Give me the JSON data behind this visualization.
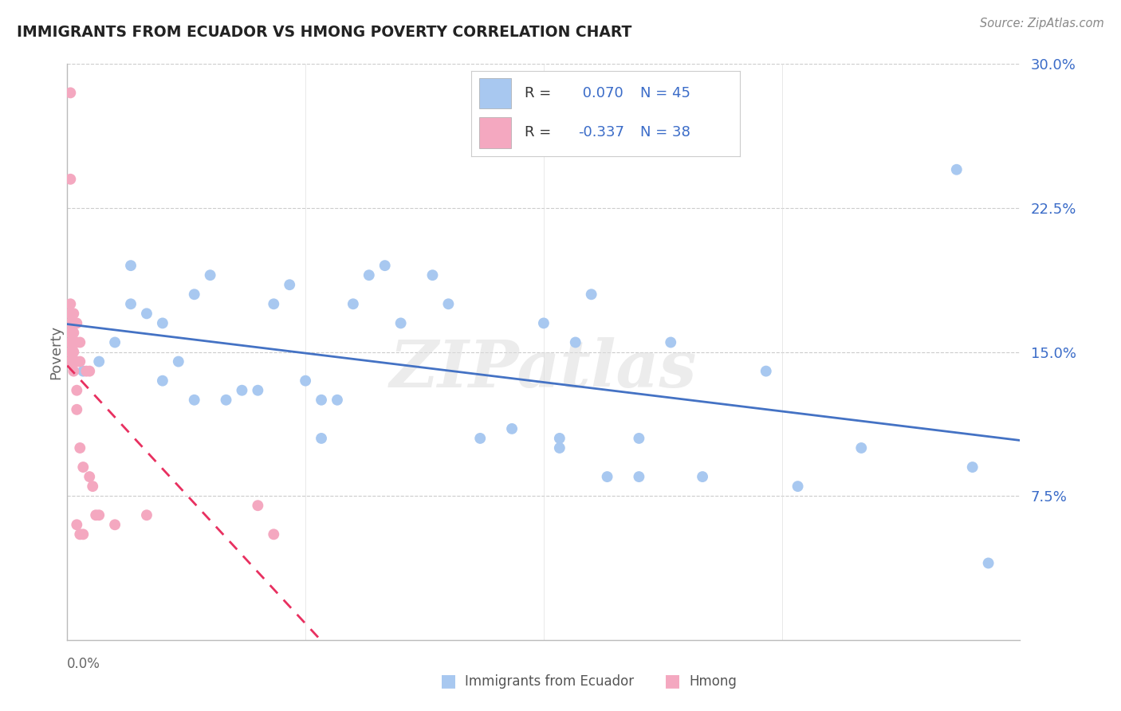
{
  "title": "IMMIGRANTS FROM ECUADOR VS HMONG POVERTY CORRELATION CHART",
  "source": "Source: ZipAtlas.com",
  "ylabel": "Poverty",
  "watermark": "ZIPatlas",
  "ecuador_R": 0.07,
  "ecuador_N": 45,
  "hmong_R": -0.337,
  "hmong_N": 38,
  "ecuador_color": "#A8C8F0",
  "ecuador_line_color": "#4472C4",
  "hmong_color": "#F4A8C0",
  "hmong_line_color": "#E83060",
  "background_color": "#FFFFFF",
  "grid_color": "#CCCCCC",
  "title_color": "#222222",
  "legend_color": "#3B6CC8",
  "xlim": [
    0.0,
    0.3
  ],
  "ylim": [
    0.0,
    0.3
  ],
  "yticks": [
    0.075,
    0.15,
    0.225,
    0.3
  ],
  "ytick_labels": [
    "7.5%",
    "15.0%",
    "22.5%",
    "30.0%"
  ],
  "ecuador_x": [
    0.005,
    0.01,
    0.015,
    0.02,
    0.02,
    0.025,
    0.03,
    0.03,
    0.035,
    0.04,
    0.04,
    0.045,
    0.05,
    0.055,
    0.06,
    0.065,
    0.07,
    0.075,
    0.08,
    0.08,
    0.085,
    0.09,
    0.095,
    0.1,
    0.105,
    0.115,
    0.12,
    0.13,
    0.14,
    0.15,
    0.155,
    0.155,
    0.16,
    0.165,
    0.17,
    0.18,
    0.18,
    0.19,
    0.2,
    0.22,
    0.23,
    0.25,
    0.28,
    0.285,
    0.29
  ],
  "ecuador_y": [
    0.14,
    0.145,
    0.155,
    0.175,
    0.195,
    0.17,
    0.135,
    0.165,
    0.145,
    0.125,
    0.18,
    0.19,
    0.125,
    0.13,
    0.13,
    0.175,
    0.185,
    0.135,
    0.125,
    0.105,
    0.125,
    0.175,
    0.19,
    0.195,
    0.165,
    0.19,
    0.175,
    0.105,
    0.11,
    0.165,
    0.1,
    0.105,
    0.155,
    0.18,
    0.085,
    0.105,
    0.085,
    0.155,
    0.085,
    0.14,
    0.08,
    0.1,
    0.245,
    0.09,
    0.04
  ],
  "hmong_x": [
    0.001,
    0.001,
    0.001,
    0.001,
    0.001,
    0.001,
    0.001,
    0.001,
    0.001,
    0.002,
    0.002,
    0.002,
    0.002,
    0.002,
    0.002,
    0.002,
    0.003,
    0.003,
    0.003,
    0.003,
    0.003,
    0.003,
    0.004,
    0.004,
    0.004,
    0.004,
    0.005,
    0.005,
    0.006,
    0.007,
    0.007,
    0.008,
    0.009,
    0.01,
    0.015,
    0.025,
    0.06,
    0.065
  ],
  "hmong_y": [
    0.285,
    0.24,
    0.175,
    0.17,
    0.165,
    0.16,
    0.155,
    0.15,
    0.145,
    0.17,
    0.165,
    0.16,
    0.155,
    0.15,
    0.145,
    0.14,
    0.165,
    0.155,
    0.145,
    0.13,
    0.12,
    0.06,
    0.155,
    0.145,
    0.1,
    0.055,
    0.09,
    0.055,
    0.14,
    0.14,
    0.085,
    0.08,
    0.065,
    0.065,
    0.06,
    0.065,
    0.07,
    0.055
  ]
}
